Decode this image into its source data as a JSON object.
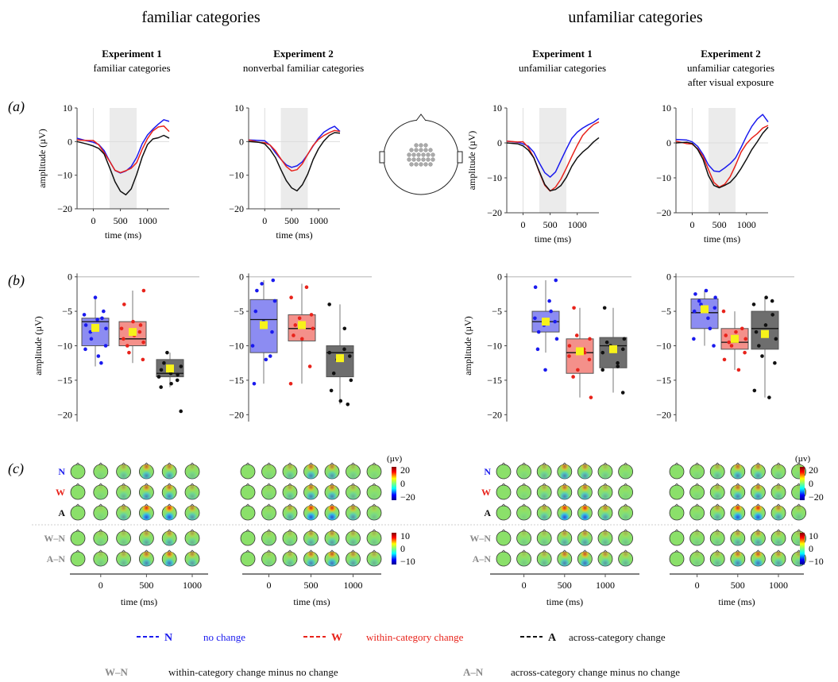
{
  "headers": {
    "familiar": "familiar categories",
    "unfamiliar": "unfamiliar categories"
  },
  "columns": [
    {
      "exp": "Experiment 1",
      "lines": [
        "familiar categories"
      ]
    },
    {
      "exp": "Experiment 2",
      "lines": [
        "nonverbal familiar categories"
      ]
    },
    {
      "exp": "Experiment 1",
      "lines": [
        "unfamiliar categories"
      ]
    },
    {
      "exp": "Experiment 2",
      "lines": [
        "unfamiliar categories",
        "after visual exposure"
      ]
    }
  ],
  "panel_labels": [
    "(a)",
    "(b)",
    "(c)"
  ],
  "colors": {
    "N": "#1a1aee",
    "W": "#e8231b",
    "A": "#111111",
    "W_N": "#8a8a8a",
    "A_N": "#8a8a8a",
    "shade": "#ebebeb",
    "boxN": "#8c8cf2",
    "boxW": "#f4908a",
    "boxA": "#6e6e6e",
    "mean": "#f7f21a"
  },
  "chart_data": [
    {
      "type": "line",
      "panel": "a",
      "xlabel": "time (ms)",
      "ylabel": "amplitude (µV)",
      "xticks": [
        0,
        500,
        1000
      ],
      "yticks": [
        10,
        0,
        -10,
        -20
      ],
      "xlim": [
        -300,
        1400
      ],
      "ylim": [
        -20,
        10
      ],
      "shaded_interval": [
        300,
        800
      ],
      "series_names": [
        "N",
        "W",
        "A"
      ],
      "experiments": [
        {
          "x": [
            -300,
            -100,
            0,
            100,
            200,
            300,
            400,
            500,
            600,
            700,
            800,
            900,
            1000,
            1100,
            1200,
            1300,
            1400
          ],
          "series": [
            {
              "name": "N",
              "values": [
                1,
                0.5,
                0,
                -1,
                -3,
                -6,
                -8.5,
                -9,
                -8.5,
                -7.5,
                -5,
                -1,
                2,
                4,
                5.5,
                6.5,
                6
              ]
            },
            {
              "name": "W",
              "values": [
                0.5,
                0,
                0,
                -1,
                -3,
                -5.5,
                -8.5,
                -9.5,
                -9,
                -8,
                -6,
                -2,
                1,
                3,
                4,
                4.5,
                3
              ]
            },
            {
              "name": "A",
              "values": [
                0,
                -0.5,
                -1,
                -2,
                -4,
                -8,
                -12,
                -14.5,
                -15.5,
                -14,
                -10,
                -5,
                -1,
                1,
                1.5,
                2,
                1
              ]
            }
          ]
        },
        {
          "x": [
            -300,
            -100,
            0,
            100,
            200,
            300,
            400,
            500,
            600,
            700,
            800,
            900,
            1000,
            1100,
            1200,
            1300,
            1400
          ],
          "series": [
            {
              "name": "N",
              "values": [
                0.5,
                0,
                0,
                -1,
                -3,
                -5,
                -7,
                -8,
                -7.5,
                -6,
                -3.5,
                -1,
                1,
                2.5,
                3.5,
                4.5,
                3
              ]
            },
            {
              "name": "W",
              "values": [
                0.5,
                0,
                0,
                -1,
                -3,
                -5.5,
                -7.5,
                -8.5,
                -8,
                -6.5,
                -4,
                -1.5,
                0.5,
                2,
                3,
                3.5,
                3
              ]
            },
            {
              "name": "A",
              "values": [
                0,
                -0.5,
                -1,
                -2.5,
                -4.5,
                -8,
                -11.5,
                -14,
                -15,
                -13,
                -9.5,
                -5,
                -2,
                0,
                1.5,
                2.5,
                2.5
              ]
            }
          ]
        },
        {
          "x": [
            -300,
            -100,
            0,
            100,
            200,
            300,
            400,
            500,
            600,
            700,
            800,
            900,
            1000,
            1100,
            1200,
            1300,
            1400
          ],
          "series": [
            {
              "name": "N",
              "values": [
                0.5,
                0.5,
                0,
                -1,
                -3,
                -6,
                -8.5,
                -9.5,
                -8,
                -5,
                -2,
                1,
                3,
                4.5,
                5.5,
                6,
                7
              ]
            },
            {
              "name": "W",
              "values": [
                0.5,
                0,
                0,
                -1.5,
                -4,
                -8,
                -12,
                -14,
                -13,
                -10.5,
                -7,
                -3.5,
                -0.5,
                2,
                3.5,
                5,
                6
              ]
            },
            {
              "name": "A",
              "values": [
                0,
                0,
                -0.5,
                -2,
                -4.5,
                -8.5,
                -12,
                -13.5,
                -13,
                -12,
                -10,
                -7,
                -4.5,
                -2.5,
                -1,
                0.5,
                1.5
              ]
            }
          ]
        },
        {
          "x": [
            -300,
            -100,
            0,
            100,
            200,
            300,
            400,
            500,
            600,
            700,
            800,
            900,
            1000,
            1100,
            1200,
            1300,
            1400
          ],
          "series": [
            {
              "name": "N",
              "values": [
                1,
                0.5,
                0,
                -1,
                -3,
                -6,
                -8,
                -8.5,
                -7.5,
                -6,
                -4,
                -1,
                2,
                4.5,
                6.5,
                8,
                6
              ]
            },
            {
              "name": "W",
              "values": [
                0.5,
                0,
                0,
                -1.5,
                -4,
                -8,
                -11.5,
                -12.5,
                -11.5,
                -9.5,
                -6.5,
                -3,
                -0.5,
                1.5,
                3,
                4.5,
                5
              ]
            },
            {
              "name": "A",
              "values": [
                0,
                0,
                -0.5,
                -2,
                -4.5,
                -9,
                -12,
                -13,
                -12.5,
                -11.5,
                -9.5,
                -7,
                -4.5,
                -2,
                0,
                2.5,
                4.5
              ]
            }
          ]
        }
      ]
    },
    {
      "type": "box",
      "panel": "b",
      "ylabel": "amplitude (µV)",
      "yticks": [
        0,
        -5,
        -10,
        -15,
        -20
      ],
      "ylim": [
        -21,
        1
      ],
      "groups": [
        "N",
        "W",
        "A"
      ],
      "experiments": [
        {
          "boxes": [
            {
              "name": "N",
              "q1": -10,
              "median": -6.5,
              "q3": -6,
              "wlo": -13,
              "whi": -3,
              "mean": -7.4,
              "points": [
                -3,
                -5,
                -5.5,
                -6,
                -6.2,
                -7,
                -7.5,
                -8,
                -9,
                -10,
                -10.5,
                -11.5,
                -12.5
              ]
            },
            {
              "name": "W",
              "q1": -10,
              "median": -9,
              "q3": -6.5,
              "wlo": -12.5,
              "whi": -2,
              "mean": -8,
              "points": [
                -2,
                -4,
                -6.5,
                -7,
                -7.5,
                -8,
                -8.5,
                -9,
                -9.5,
                -10,
                -11,
                -12
              ]
            },
            {
              "name": "A",
              "q1": -14.5,
              "median": -14,
              "q3": -12,
              "wlo": -16,
              "whi": -11,
              "mean": -13.3,
              "points": [
                -11,
                -12.5,
                -13,
                -13.5,
                -14,
                -14.2,
                -14.5,
                -15,
                -15.5,
                -16,
                -19.5
              ]
            }
          ]
        },
        {
          "boxes": [
            {
              "name": "N",
              "q1": -11,
              "median": -6.2,
              "q3": -3.3,
              "wlo": -15.5,
              "whi": -0.5,
              "mean": -7,
              "points": [
                -0.5,
                -1,
                -2,
                -3.5,
                -5,
                -6.5,
                -8,
                -10,
                -11.5,
                -12,
                -15.5
              ]
            },
            {
              "name": "W",
              "q1": -9.3,
              "median": -7.5,
              "q3": -5.5,
              "wlo": -15.5,
              "whi": -1,
              "mean": -7,
              "points": [
                -1.5,
                -3,
                -5.5,
                -6,
                -7,
                -7.5,
                -8.5,
                -9,
                -13,
                -15.5
              ]
            },
            {
              "name": "A",
              "q1": -14.5,
              "median": -11,
              "q3": -10,
              "wlo": -18.5,
              "whi": -4,
              "mean": -11.8,
              "points": [
                -4,
                -7.5,
                -10.5,
                -11,
                -11.5,
                -12,
                -14,
                -15,
                -16.5,
                -18,
                -18.5
              ]
            }
          ]
        },
        {
          "boxes": [
            {
              "name": "N",
              "q1": -8,
              "median": -6.5,
              "q3": -5,
              "wlo": -11,
              "whi": -0.5,
              "mean": -6.5,
              "points": [
                -0.5,
                -1.5,
                -3.5,
                -5,
                -6,
                -6.5,
                -7,
                -8,
                -9,
                -10.5,
                -13.5
              ]
            },
            {
              "name": "W",
              "q1": -14,
              "median": -11,
              "q3": -9,
              "wlo": -17.5,
              "whi": -4.5,
              "mean": -10.8,
              "points": [
                -4.5,
                -8.5,
                -9,
                -10,
                -10.5,
                -11,
                -11.5,
                -12,
                -13.5,
                -14.5,
                -17.5
              ]
            },
            {
              "name": "A",
              "q1": -13.2,
              "median": -10,
              "q3": -8.8,
              "wlo": -16.8,
              "whi": -4.5,
              "mean": -10.5,
              "points": [
                -4.5,
                -9,
                -9.5,
                -10,
                -10.5,
                -11,
                -12.5,
                -13,
                -13.5,
                -16.8
              ]
            }
          ]
        },
        {
          "boxes": [
            {
              "name": "N",
              "q1": -7.5,
              "median": -5.2,
              "q3": -3.2,
              "wlo": -10,
              "whi": -2,
              "mean": -4.7,
              "points": [
                -2,
                -2.5,
                -3,
                -3.5,
                -4,
                -4.5,
                -5,
                -6,
                -7.5,
                -9,
                -10
              ]
            },
            {
              "name": "W",
              "q1": -10.5,
              "median": -9.5,
              "q3": -7.5,
              "wlo": -13.5,
              "whi": -5,
              "mean": -9,
              "points": [
                -5,
                -7.5,
                -8,
                -8.5,
                -9,
                -9.5,
                -10,
                -11,
                -12,
                -13.5
              ]
            },
            {
              "name": "A",
              "q1": -10.5,
              "median": -7.5,
              "q3": -5,
              "wlo": -17.5,
              "whi": -3,
              "mean": -8.3,
              "points": [
                -3,
                -3.5,
                -4,
                -5.5,
                -7,
                -8,
                -9,
                -10,
                -11.5,
                -12.5,
                -16.5,
                -17.5
              ]
            }
          ]
        }
      ]
    },
    {
      "type": "heatmap",
      "panel": "c",
      "row_labels": [
        "N",
        "W",
        "A",
        "W–N",
        "A–N"
      ],
      "xlabel": "time (ms)",
      "xticks": [
        0,
        500,
        1000
      ],
      "colorbar1": {
        "unit": "(µv)",
        "ticks": [
          20,
          0,
          -20
        ]
      },
      "colorbar2": {
        "ticks": [
          10,
          0,
          -10
        ]
      },
      "panels_per_row": [
        6,
        7,
        7,
        7
      ],
      "intensity": {
        "N": [
          0,
          0.1,
          0.3,
          0.6,
          0.5,
          0.2,
          0.1
        ],
        "W": [
          0,
          0.1,
          0.3,
          0.6,
          0.6,
          0.3,
          0.1
        ],
        "A": [
          0,
          0.1,
          0.4,
          0.9,
          0.9,
          0.5,
          0.2
        ],
        "W_N": [
          0,
          0.15,
          0.2,
          0.4,
          0.45,
          0.3,
          0.2
        ],
        "A_N": [
          0,
          0.15,
          0.3,
          0.6,
          0.7,
          0.45,
          0.3
        ]
      }
    }
  ],
  "legend": {
    "row1": [
      {
        "key": "N",
        "desc": "no change"
      },
      {
        "key": "W",
        "desc": "within-category change"
      },
      {
        "key": "A",
        "desc": "across-category change"
      }
    ],
    "row2": [
      {
        "key": "W–N",
        "desc": "within-category change minus no change"
      },
      {
        "key": "A–N",
        "desc": "across-category change minus no change"
      }
    ]
  }
}
